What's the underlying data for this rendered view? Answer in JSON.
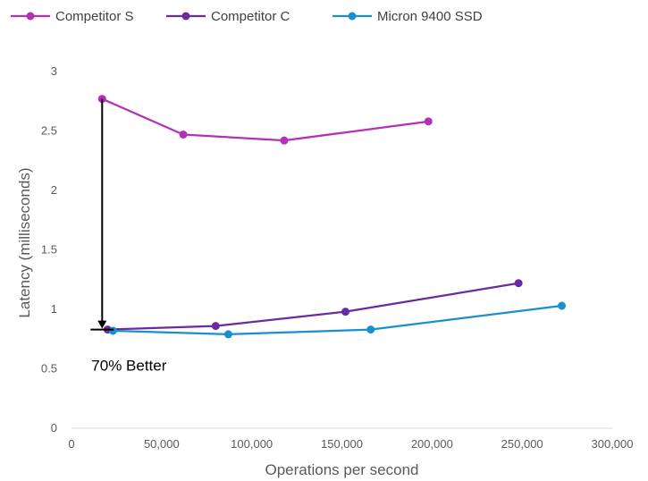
{
  "chart_data": {
    "type": "line",
    "title": "",
    "xlabel": "Operations per second",
    "ylabel": "Latency (milliseconds)",
    "xlim": [
      0,
      300000
    ],
    "ylim": [
      0,
      3
    ],
    "x_ticks": [
      0,
      50000,
      100000,
      150000,
      200000,
      250000,
      300000
    ],
    "x_tick_labels": [
      "0",
      "50,000",
      "100,000",
      "150,000",
      "200,000",
      "250,000",
      "300,000"
    ],
    "y_ticks": [
      0,
      0.5,
      1,
      1.5,
      2,
      2.5,
      3
    ],
    "y_tick_labels": [
      "0",
      "0.5",
      "1",
      "1.5",
      "2",
      "2.5",
      "3"
    ],
    "grid": false,
    "legend_position": "top",
    "series": [
      {
        "name": "Competitor S",
        "color": "#b530b8",
        "points": [
          [
            17000,
            2.77
          ],
          [
            62000,
            2.47
          ],
          [
            118000,
            2.42
          ],
          [
            198000,
            2.58
          ]
        ]
      },
      {
        "name": "Competitor C",
        "color": "#6a2aa0",
        "points": [
          [
            20000,
            0.83
          ],
          [
            80000,
            0.86
          ],
          [
            152000,
            0.98
          ],
          [
            248000,
            1.22
          ]
        ]
      },
      {
        "name": "Micron 9400 SSD",
        "color": "#1a8fd0",
        "points": [
          [
            23000,
            0.82
          ],
          [
            87000,
            0.79
          ],
          [
            166000,
            0.83
          ],
          [
            272000,
            1.03
          ]
        ]
      }
    ],
    "annotations": [
      {
        "text": "70% Better",
        "from": [
          17000,
          2.77
        ],
        "to": [
          17000,
          0.83
        ]
      }
    ]
  }
}
